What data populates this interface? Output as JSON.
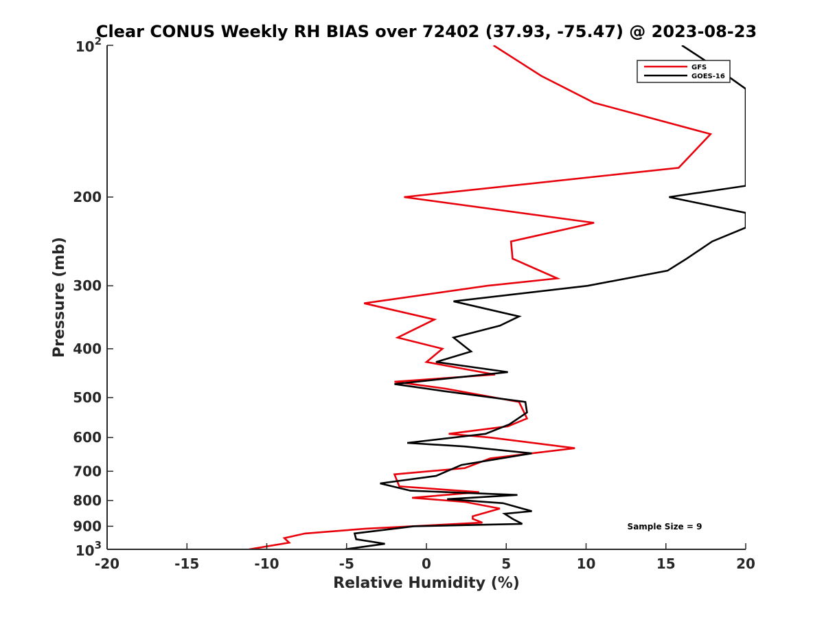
{
  "chart_data": {
    "type": "line",
    "title": "Clear CONUS Weekly RH BIAS over 72402 (37.93, -75.47) @ 2023-08-23",
    "xlabel": "Relative Humidity (%)",
    "ylabel": "Pressure (mb)",
    "xlim": [
      -20,
      20
    ],
    "ylim": [
      100,
      1000
    ],
    "yscale": "log",
    "y_reversed": true,
    "grid": false,
    "x_ticks": [
      -20,
      -15,
      -10,
      -5,
      0,
      5,
      10,
      15,
      20
    ],
    "x_tick_labels": [
      "-20",
      "-15",
      "-10",
      "-5",
      "0",
      "5",
      "10",
      "15",
      "20"
    ],
    "y_ticks": [
      200,
      300,
      400,
      500,
      600,
      700,
      800,
      900
    ],
    "y_tick_labels": [
      "200",
      "300",
      "400",
      "500",
      "600",
      "700",
      "800",
      "900"
    ],
    "y_end_ticks": [
      {
        "value": 100,
        "base": "10",
        "exp": "2"
      },
      {
        "value": 1000,
        "base": "10",
        "exp": "3"
      }
    ],
    "legend_position": "top-right",
    "annotation": "Sample Size = 9",
    "series": [
      {
        "name": "GFS",
        "color": "#e8000b",
        "points": [
          [
            4.2,
            100
          ],
          [
            7.2,
            115
          ],
          [
            10.5,
            130
          ],
          [
            17.8,
            150
          ],
          [
            15.8,
            175
          ],
          [
            -1.4,
            200
          ],
          [
            10.5,
            225
          ],
          [
            5.3,
            245
          ],
          [
            5.4,
            265
          ],
          [
            8.2,
            290
          ],
          [
            3.8,
            300
          ],
          [
            -3.9,
            325
          ],
          [
            0.5,
            350
          ],
          [
            -1.8,
            380
          ],
          [
            1.0,
            400
          ],
          [
            0.0,
            425
          ],
          [
            4.3,
            450
          ],
          [
            -2.0,
            465
          ],
          [
            1.2,
            480
          ],
          [
            5.8,
            510
          ],
          [
            6.3,
            550
          ],
          [
            5.1,
            570
          ],
          [
            1.4,
            590
          ],
          [
            4.0,
            600
          ],
          [
            9.3,
            630
          ],
          [
            4.0,
            660
          ],
          [
            2.4,
            690
          ],
          [
            -2.0,
            710
          ],
          [
            -1.7,
            750
          ],
          [
            3.3,
            770
          ],
          [
            -0.9,
            790
          ],
          [
            2.4,
            805
          ],
          [
            4.6,
            830
          ],
          [
            2.9,
            860
          ],
          [
            2.9,
            870
          ],
          [
            3.5,
            885
          ],
          [
            -3.8,
            910
          ],
          [
            -7.6,
            930
          ],
          [
            -8.9,
            950
          ],
          [
            -8.6,
            970
          ],
          [
            -11.1,
            1000
          ]
        ]
      },
      {
        "name": "GOES-16",
        "color": "#000000",
        "points": [
          [
            16.0,
            100
          ],
          [
            18.0,
            110
          ],
          [
            20.0,
            122
          ],
          [
            20.0,
            190
          ],
          [
            15.2,
            200
          ],
          [
            20.0,
            215
          ],
          [
            20.0,
            230
          ],
          [
            17.9,
            245
          ],
          [
            16.3,
            265
          ],
          [
            15.1,
            280
          ],
          [
            10.1,
            300
          ],
          [
            1.7,
            322
          ],
          [
            5.8,
            345
          ],
          [
            4.6,
            360
          ],
          [
            1.7,
            380
          ],
          [
            2.8,
            405
          ],
          [
            0.6,
            425
          ],
          [
            5.1,
            445
          ],
          [
            -2.0,
            470
          ],
          [
            1.0,
            485
          ],
          [
            6.2,
            510
          ],
          [
            6.3,
            535
          ],
          [
            5.2,
            565
          ],
          [
            3.7,
            590
          ],
          [
            -1.2,
            615
          ],
          [
            2.4,
            625
          ],
          [
            6.6,
            645
          ],
          [
            2.2,
            680
          ],
          [
            0.6,
            715
          ],
          [
            -2.9,
            740
          ],
          [
            -1.0,
            765
          ],
          [
            5.7,
            780
          ],
          [
            1.3,
            795
          ],
          [
            4.8,
            810
          ],
          [
            6.6,
            840
          ],
          [
            4.9,
            850
          ],
          [
            5.4,
            870
          ],
          [
            6.0,
            890
          ],
          [
            -0.8,
            900
          ],
          [
            -4.5,
            930
          ],
          [
            -4.4,
            955
          ],
          [
            -2.6,
            975
          ],
          [
            -5.1,
            1000
          ]
        ]
      }
    ]
  }
}
